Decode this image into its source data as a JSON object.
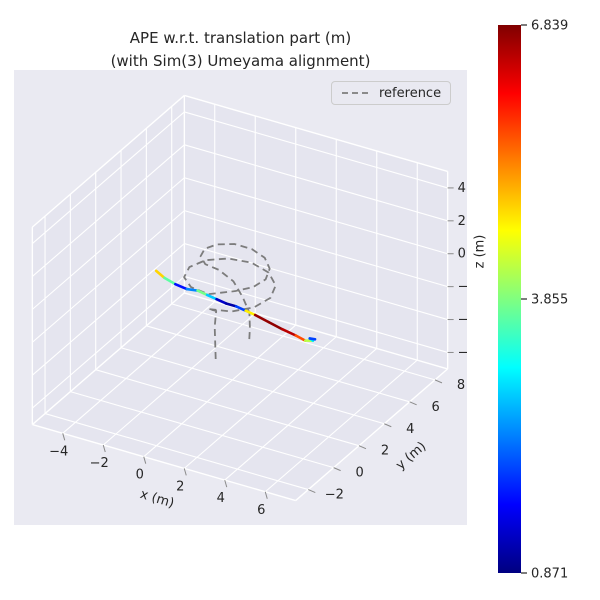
{
  "figure": {
    "title_line1": "APE w.r.t. translation part (m)",
    "title_line2": "(with Sim(3) Umeyama alignment)",
    "background": "#ffffff",
    "axes_background": "#eaeaf2",
    "pane_color": "#e5e5ef",
    "grid_color": "#ffffff",
    "text_color": "#262626",
    "tick_color": "#8a8a8a"
  },
  "legend": {
    "items": [
      {
        "label": "reference",
        "line_style": "dashed",
        "color": "#7c7c7c"
      }
    ]
  },
  "chart_data": {
    "type": "line",
    "subtype": "trajectory-3d",
    "title": "APE w.r.t. translation part (m) (with Sim(3) Umeyama alignment)",
    "xlabel": "x (m)",
    "ylabel": "y (m)",
    "zlabel": "z (m)",
    "xlim": [
      -5.5,
      7.5
    ],
    "ylim": [
      -3,
      9
    ],
    "zlim": [
      -7,
      5
    ],
    "xticks": [
      -4,
      -2,
      0,
      2,
      4,
      6
    ],
    "xtick_labels": [
      "−4",
      "−2",
      "0",
      "2",
      "4",
      "6"
    ],
    "yticks": [
      -2,
      0,
      2,
      4,
      6,
      8
    ],
    "ytick_labels": [
      "−2",
      "0",
      "2",
      "4",
      "6",
      "8"
    ],
    "zticks": [
      -6,
      -4,
      -2,
      0,
      2,
      4
    ],
    "ztick_labels": [
      "−6",
      "−4",
      "−2",
      "0",
      "2",
      "4"
    ],
    "view": {
      "azim": -60,
      "elev": 30,
      "projection": "ortho-approx"
    },
    "grid": true,
    "colorbar": {
      "cmap": "jet",
      "min": 0.871,
      "max": 6.839,
      "tick_values": [
        0.871,
        3.855,
        6.839
      ],
      "tick_labels": [
        "0.871",
        "3.855",
        "6.839"
      ]
    },
    "series": [
      {
        "name": "reference",
        "style": "dashed",
        "color": "#7c7c7c",
        "points": [
          [
            1.3,
            0.6,
            -3.0
          ],
          [
            1.15,
            0.8,
            -2.2
          ],
          [
            1.0,
            1.0,
            -1.4
          ],
          [
            0.95,
            1.2,
            -0.6
          ],
          [
            1.0,
            0.5,
            0.0
          ],
          [
            2.0,
            0.73,
            0.05
          ],
          [
            2.73,
            1.35,
            0.15
          ],
          [
            3.0,
            2.2,
            0.25
          ],
          [
            2.73,
            3.05,
            0.35
          ],
          [
            2.0,
            3.67,
            0.45
          ],
          [
            1.0,
            3.9,
            0.55
          ],
          [
            0.0,
            3.67,
            0.6
          ],
          [
            -0.73,
            3.05,
            0.65
          ],
          [
            -1.0,
            2.2,
            0.7
          ],
          [
            -0.73,
            1.35,
            0.75
          ],
          [
            0.0,
            0.73,
            0.82
          ],
          [
            1.0,
            0.5,
            0.9
          ],
          [
            1.95,
            1.14,
            1.0
          ],
          [
            2.5,
            1.65,
            1.1
          ],
          [
            2.7,
            2.3,
            1.2
          ],
          [
            2.5,
            2.95,
            1.35
          ],
          [
            1.95,
            3.43,
            1.5
          ],
          [
            1.2,
            3.6,
            1.65
          ],
          [
            0.45,
            3.43,
            1.8
          ],
          [
            -0.1,
            2.95,
            1.9
          ],
          [
            -0.3,
            2.3,
            2.0
          ],
          [
            -0.1,
            1.65,
            2.05
          ],
          [
            0.45,
            1.14,
            2.1
          ],
          [
            1.2,
            1.0,
            2.12
          ],
          [
            1.8,
            1.2,
            1.5
          ],
          [
            2.2,
            1.3,
            0.6
          ],
          [
            2.4,
            1.5,
            -0.4
          ],
          [
            2.3,
            1.7,
            -1.5
          ],
          [
            2.2,
            1.8,
            -2.5
          ]
        ]
      },
      {
        "name": "estimate",
        "style": "solid",
        "color_by": "ape",
        "points": [
          [
            -2.7,
            2.3,
            -0.2
          ],
          [
            -2.2,
            2.15,
            -0.35
          ],
          [
            -1.6,
            2.05,
            -0.45
          ],
          [
            -1.0,
            2.0,
            -0.5
          ],
          [
            -0.5,
            2.05,
            -0.45
          ],
          [
            0.0,
            2.0,
            -0.5
          ],
          [
            0.5,
            1.95,
            -0.55
          ],
          [
            1.0,
            1.9,
            -0.6
          ],
          [
            1.5,
            1.9,
            -0.6
          ],
          [
            2.0,
            1.85,
            -0.65
          ],
          [
            2.5,
            1.8,
            -0.7
          ],
          [
            3.2,
            1.75,
            -0.85
          ],
          [
            3.9,
            1.7,
            -1.0
          ],
          [
            4.6,
            1.65,
            -1.1
          ],
          [
            5.1,
            1.6,
            -1.2
          ],
          [
            5.35,
            1.8,
            -1.25
          ],
          [
            5.1,
            1.95,
            -1.3
          ],
          [
            5.3,
            2.05,
            -1.35
          ]
        ],
        "values": [
          4.6,
          5.1,
          2.2,
          1.2,
          3.6,
          4.0,
          1.6,
          1.0,
          1.2,
          2.8,
          6.6,
          6.8,
          6.7,
          6.3,
          5.0,
          3.4,
          2.6,
          1.4
        ]
      }
    ]
  }
}
